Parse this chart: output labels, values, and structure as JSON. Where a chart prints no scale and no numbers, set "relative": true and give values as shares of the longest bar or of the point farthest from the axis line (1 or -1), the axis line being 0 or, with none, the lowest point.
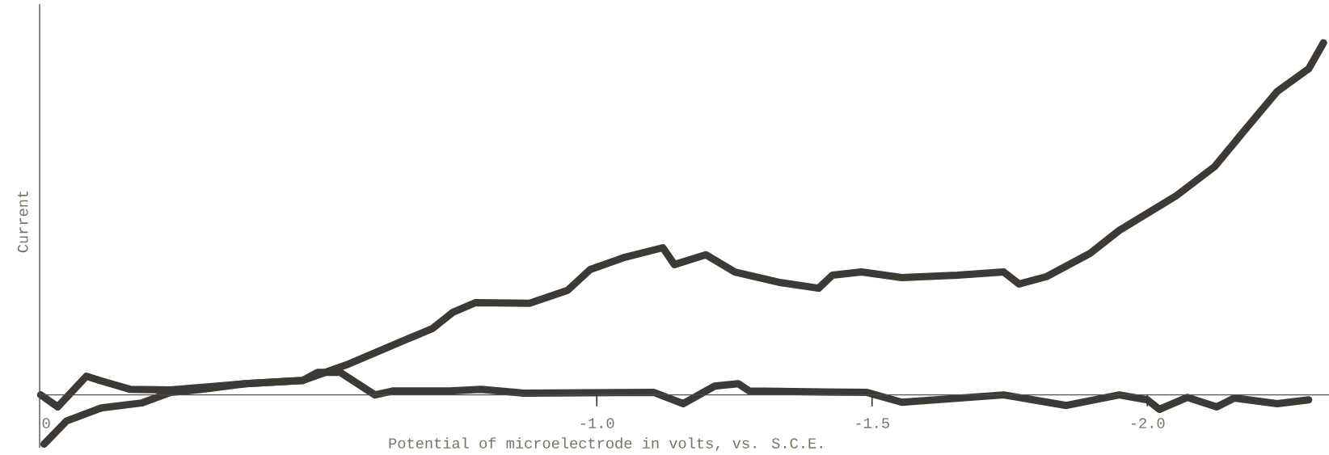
{
  "chart_data": {
    "type": "line",
    "xlabel": "Potential of microelectrode in volts, vs. S.C.E.",
    "ylabel": "Current",
    "relative": true,
    "xlim": [
      0.012,
      -2.33
    ],
    "xticks": [
      {
        "value": 0,
        "label": "0"
      },
      {
        "value": -1.0,
        "label": "-1.0"
      },
      {
        "value": -1.5,
        "label": "-1.5"
      },
      {
        "value": -2.0,
        "label": "-2.0"
      }
    ],
    "line_style": "solid",
    "marker": "none",
    "series": [
      {
        "color": "#3d3a35",
        "x": [
          0.004,
          -0.037,
          -0.1,
          -0.173,
          -0.226,
          -0.283,
          -0.362,
          -0.466,
          -0.545,
          -0.702,
          -0.738,
          -0.78,
          -0.878,
          -0.947,
          -0.988,
          -1.051,
          -1.12,
          -1.141,
          -1.198,
          -1.251,
          -1.33,
          -1.403,
          -1.428,
          -1.481,
          -1.554,
          -1.655,
          -1.739,
          -1.767,
          -1.817,
          -1.896,
          -1.949,
          -2.053,
          -2.122,
          -2.183,
          -2.236,
          -2.293,
          -2.32
        ],
        "values": [
          -0.14,
          -0.074,
          -0.037,
          -0.023,
          0.007,
          0.016,
          0.032,
          0.041,
          0.085,
          0.189,
          0.234,
          0.262,
          0.26,
          0.297,
          0.356,
          0.391,
          0.418,
          0.37,
          0.398,
          0.349,
          0.32,
          0.303,
          0.34,
          0.349,
          0.333,
          0.34,
          0.349,
          0.315,
          0.336,
          0.402,
          0.467,
          0.566,
          0.648,
          0.763,
          0.862,
          0.926,
          1.0
        ]
      },
      {
        "color": "#3d3a35",
        "x": [
          0.01,
          -0.021,
          -0.073,
          -0.097,
          -0.152,
          -0.226,
          -0.362,
          -0.466,
          -0.493,
          -0.534,
          -0.597,
          -0.629,
          -0.733,
          -0.79,
          -0.868,
          -1.104,
          -1.157,
          -1.214,
          -1.257,
          -1.277,
          -1.491,
          -1.554,
          -1.739,
          -1.853,
          -1.949,
          -2.0,
          -2.022,
          -2.073,
          -2.126,
          -2.158,
          -2.236,
          -2.293
        ],
        "values": [
          0,
          -0.034,
          0.053,
          0.041,
          0.016,
          0.014,
          0.032,
          0.041,
          0.064,
          0.064,
          0,
          0.011,
          0.011,
          0.016,
          0.005,
          0.007,
          -0.025,
          0.025,
          0.032,
          0.011,
          0.007,
          -0.021,
          0,
          -0.03,
          0,
          -0.014,
          -0.041,
          -0.007,
          -0.034,
          -0.009,
          -0.025,
          -0.014
        ]
      }
    ]
  }
}
